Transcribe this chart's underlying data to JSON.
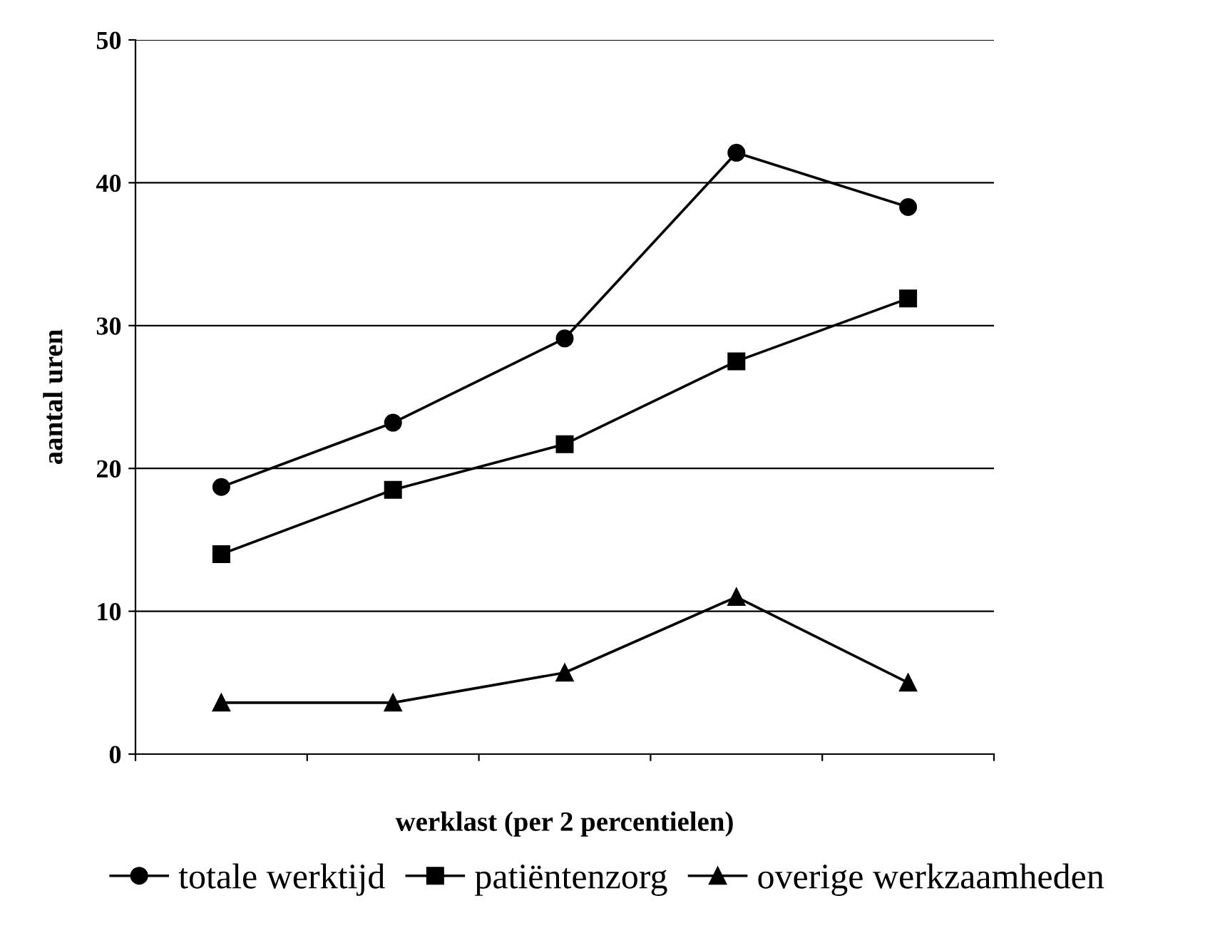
{
  "chart_data": {
    "type": "line",
    "xlabel": "werklast (per 2 percentielen)",
    "ylabel": "aantal uren",
    "categories": [
      null,
      null,
      null,
      null,
      null
    ],
    "series": [
      {
        "name": "totale werktijd",
        "color": "#000000",
        "marker": "circle",
        "values": [
          18.7,
          23.2,
          29.1,
          42.1,
          38.3
        ]
      },
      {
        "name": "patiëntenzorg",
        "color": "#000000",
        "marker": "square",
        "values": [
          14.0,
          18.5,
          21.7,
          27.5,
          31.9
        ]
      },
      {
        "name": "overige werkzaamheden",
        "color": "#000000",
        "marker": "triangle",
        "values": [
          3.6,
          3.6,
          5.7,
          11.0,
          5.0
        ]
      }
    ],
    "ylim": [
      0,
      50
    ],
    "yticks": [
      0,
      10,
      20,
      30,
      40,
      50
    ],
    "grid": "y",
    "legend": "bottom",
    "line_style": "solid"
  }
}
